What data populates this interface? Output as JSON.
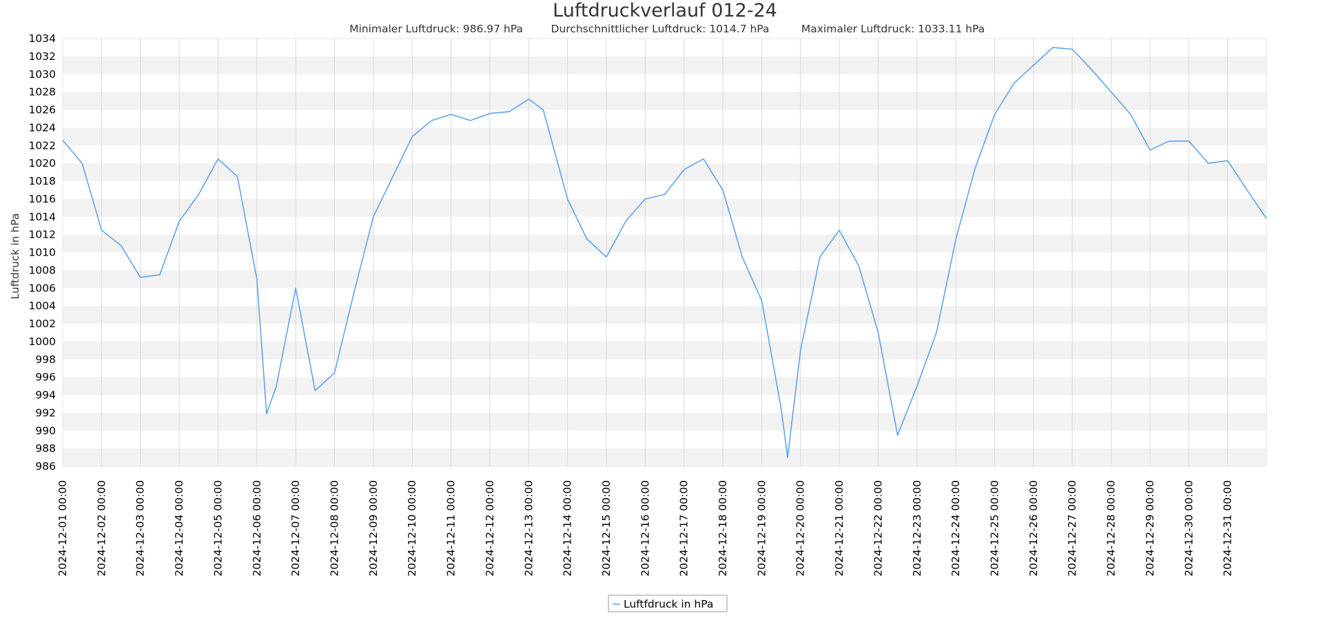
{
  "chart_data": {
    "type": "line",
    "title": "Luftdruckverlauf 012-24",
    "stats": [
      "Minimaler Luftdruck: 986.97 hPa",
      "Durchschnittlicher Luftdruck: 1014.7 hPa",
      "Maximaler Luftdruck: 1033.11 hPa"
    ],
    "xlabel": "",
    "ylabel": "Luftdruck in hPa",
    "ylim": [
      986,
      1034
    ],
    "ystep": 2,
    "xlim": [
      "2024-12-01 00:00",
      "2025-01-01 00:00"
    ],
    "x_tick_labels": [
      "2024-12-01 00:00",
      "2024-12-02 00:00",
      "2024-12-03 00:00",
      "2024-12-04 00:00",
      "2024-12-05 00:00",
      "2024-12-06 00:00",
      "2024-12-07 00:00",
      "2024-12-08 00:00",
      "2024-12-09 00:00",
      "2024-12-10 00:00",
      "2024-12-11 00:00",
      "2024-12-12 00:00",
      "2024-12-13 00:00",
      "2024-12-14 00:00",
      "2024-12-15 00:00",
      "2024-12-16 00:00",
      "2024-12-17 00:00",
      "2024-12-18 00:00",
      "2024-12-19 00:00",
      "2024-12-20 00:00",
      "2024-12-21 00:00",
      "2024-12-22 00:00",
      "2024-12-23 00:00",
      "2024-12-24 00:00",
      "2024-12-25 00:00",
      "2024-12-26 00:00",
      "2024-12-27 00:00",
      "2024-12-28 00:00",
      "2024-12-29 00:00",
      "2024-12-30 00:00",
      "2024-12-31 00:00"
    ],
    "grid": true,
    "legend": "bottom-center",
    "colors": {
      "line": "#5aa5ee",
      "band": "#f2f2f2",
      "grid": "#d9d9d9"
    },
    "series": [
      {
        "name": "Luftfdruck in hPa",
        "x": [
          "2024-12-01 00:00",
          "2024-12-01 12:00",
          "2024-12-02 00:00",
          "2024-12-02 12:00",
          "2024-12-03 00:00",
          "2024-12-03 12:00",
          "2024-12-04 00:00",
          "2024-12-04 12:00",
          "2024-12-05 00:00",
          "2024-12-05 12:00",
          "2024-12-06 00:00",
          "2024-12-06 06:00",
          "2024-12-06 12:00",
          "2024-12-07 00:00",
          "2024-12-07 12:00",
          "2024-12-08 00:00",
          "2024-12-08 12:00",
          "2024-12-09 00:00",
          "2024-12-09 12:00",
          "2024-12-10 00:00",
          "2024-12-10 12:00",
          "2024-12-11 00:00",
          "2024-12-11 12:00",
          "2024-12-12 00:00",
          "2024-12-12 12:00",
          "2024-12-13 00:00",
          "2024-12-13 09:00",
          "2024-12-13 18:00",
          "2024-12-14 00:00",
          "2024-12-14 12:00",
          "2024-12-15 00:00",
          "2024-12-15 12:00",
          "2024-12-16 00:00",
          "2024-12-16 12:00",
          "2024-12-17 00:00",
          "2024-12-17 12:00",
          "2024-12-18 00:00",
          "2024-12-18 12:00",
          "2024-12-19 00:00",
          "2024-12-19 12:00",
          "2024-12-19 16:00",
          "2024-12-20 00:00",
          "2024-12-20 12:00",
          "2024-12-21 00:00",
          "2024-12-21 12:00",
          "2024-12-22 00:00",
          "2024-12-22 12:00",
          "2024-12-23 00:00",
          "2024-12-23 12:00",
          "2024-12-24 00:00",
          "2024-12-24 12:00",
          "2024-12-25 00:00",
          "2024-12-25 12:00",
          "2024-12-26 00:00",
          "2024-12-26 12:00",
          "2024-12-27 00:00",
          "2024-12-27 12:00",
          "2024-12-28 00:00",
          "2024-12-28 12:00",
          "2024-12-29 00:00",
          "2024-12-29 12:00",
          "2024-12-30 00:00",
          "2024-12-30 12:00",
          "2024-12-31 00:00",
          "2024-12-31 12:00",
          "2025-01-01 00:00"
        ],
        "values": [
          1022.6,
          1020.0,
          1012.5,
          1010.8,
          1007.2,
          1007.5,
          1013.5,
          1016.5,
          1020.5,
          1018.5,
          1007.0,
          991.9,
          995.0,
          1006.0,
          994.5,
          996.5,
          1005.5,
          1014.0,
          1018.5,
          1023.0,
          1024.8,
          1025.5,
          1024.8,
          1025.6,
          1025.8,
          1027.2,
          1026.0,
          1020.0,
          1016.0,
          1011.5,
          1009.5,
          1013.5,
          1016.0,
          1016.5,
          1019.3,
          1020.5,
          1017.0,
          1009.5,
          1004.6,
          992.5,
          987.0,
          999.0,
          1009.5,
          1012.5,
          1008.5,
          1001.0,
          989.5,
          995.0,
          1001.0,
          1011.5,
          1019.5,
          1025.5,
          1029.0,
          1031.0,
          1033.0,
          1032.8,
          1030.5,
          1028.0,
          1025.5,
          1021.5,
          1022.5,
          1022.5,
          1020.0,
          1020.3,
          1017.0,
          1013.8
        ]
      }
    ]
  }
}
